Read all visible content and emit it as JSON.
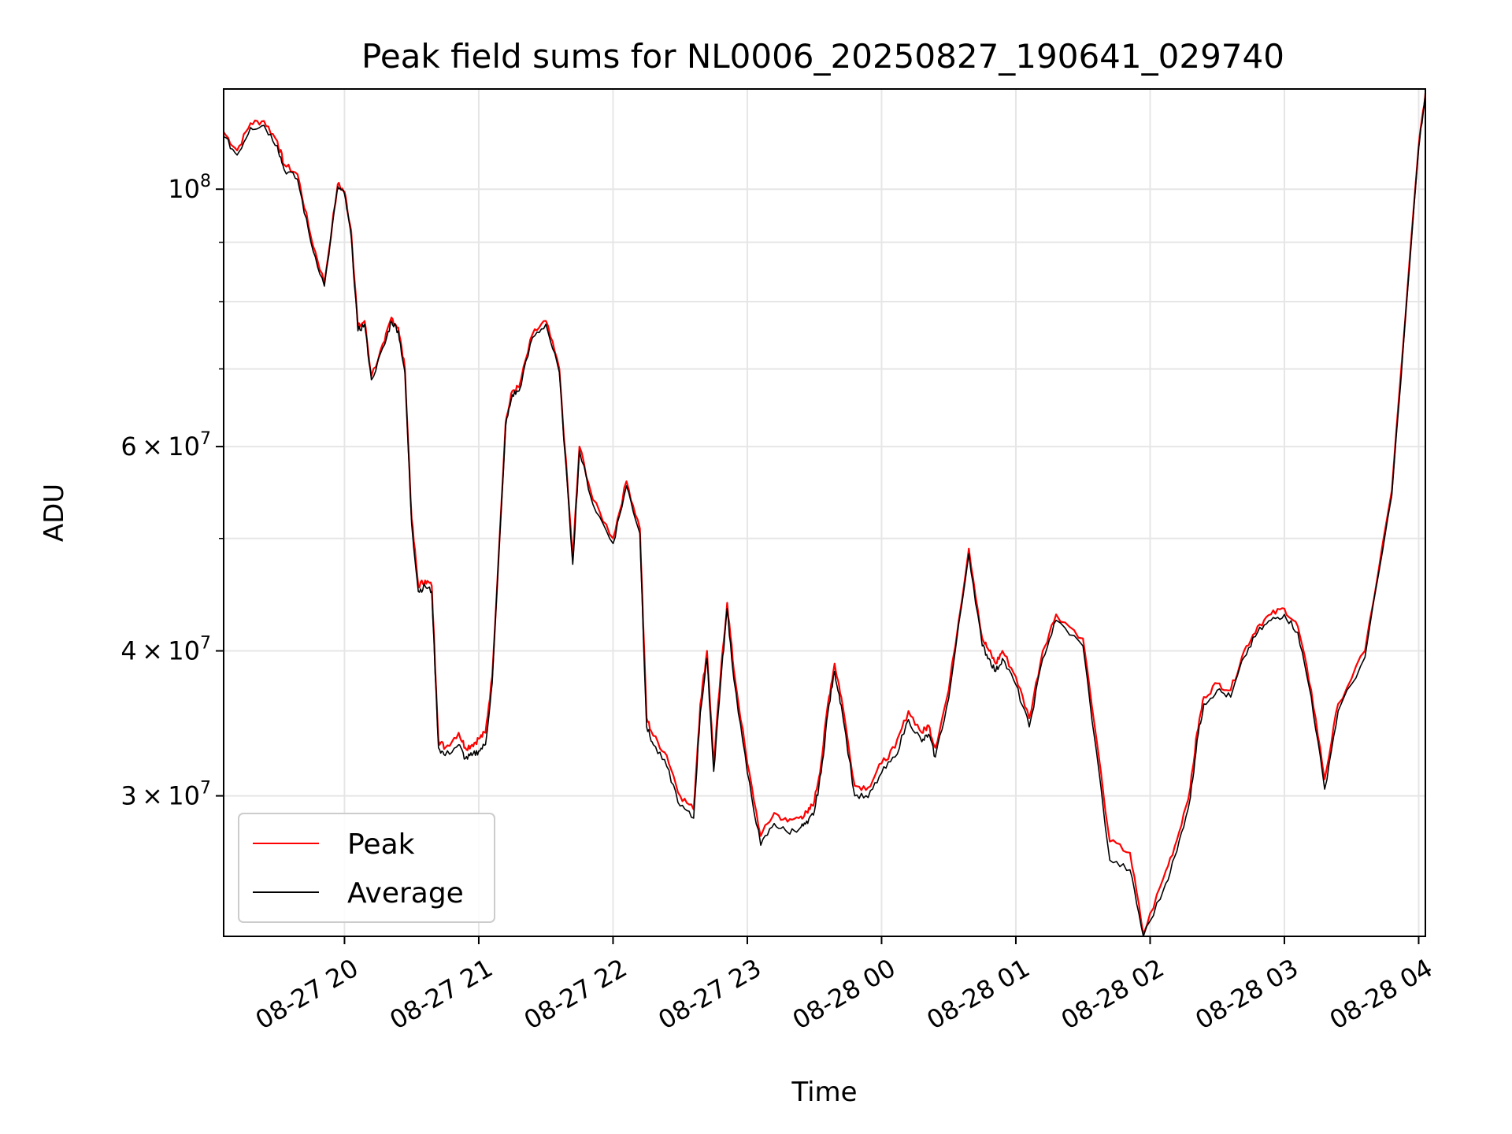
{
  "chart_data": {
    "type": "line",
    "title": "Peak field sums for NL0006_20250827_190641_029740",
    "xlabel": "Time",
    "ylabel": "ADU",
    "y_scale": "log",
    "grid": true,
    "legend_placement": "lower-left",
    "xlim": [
      "2025-08-27 19:06",
      "2025-08-28 04:03"
    ],
    "ylim": [
      22700000,
      122000000
    ],
    "x_tick_labels": [
      "08-27 20",
      "08-27 21",
      "08-27 22",
      "08-27 23",
      "08-28 00",
      "08-28 01",
      "08-28 02",
      "08-28 03",
      "08-28 04"
    ],
    "y_tick_labels": [
      {
        "value": 100000000,
        "mantissa": "",
        "exponent": "8"
      },
      {
        "value": 60000000,
        "mantissa": "6",
        "exponent": "7"
      },
      {
        "value": 40000000,
        "mantissa": "4",
        "exponent": "7"
      },
      {
        "value": 30000000,
        "mantissa": "3",
        "exponent": "7"
      }
    ],
    "x_time_hours": [
      0.0,
      0.1,
      0.2,
      0.3,
      0.4,
      0.45,
      0.55,
      0.65,
      0.75,
      0.85,
      0.9,
      0.95,
      1.0,
      1.05,
      1.1,
      1.2,
      1.25,
      1.3,
      1.35,
      1.4,
      1.45,
      1.5,
      1.55,
      1.6,
      1.65,
      1.75,
      1.8,
      1.85,
      1.9,
      1.95,
      2.0,
      2.1,
      2.15,
      2.2,
      2.3,
      2.4,
      2.5,
      2.6,
      2.65,
      2.75,
      2.9,
      3.0,
      3.1,
      3.15,
      3.2,
      3.3,
      3.4,
      3.5,
      3.55,
      3.6,
      3.65,
      3.7,
      3.75,
      3.8,
      3.9,
      4.0,
      4.1,
      4.2,
      4.3,
      4.35,
      4.4,
      4.45,
      4.5,
      4.55,
      4.6,
      4.7,
      4.8,
      4.9,
      5.0,
      5.1,
      5.2,
      5.25,
      5.3,
      5.4,
      5.55,
      5.65,
      5.7,
      5.75,
      5.8,
      5.9,
      6.0,
      6.1,
      6.2,
      6.4,
      6.6,
      6.75,
      6.85,
      7.0,
      7.1,
      7.2,
      7.25,
      7.3,
      7.4,
      7.5,
      7.6,
      7.7,
      7.8,
      7.9,
      8.0,
      8.1,
      8.2,
      8.3,
      8.5,
      8.7,
      8.9,
      8.95
    ],
    "series": [
      {
        "name": "Peak",
        "color": "#ff0000",
        "values": [
          112000000,
          108000000,
          114000000,
          114500000,
          110000000,
          105000000,
          103000000,
          91000000,
          83000000,
          101000000,
          99500000,
          92000000,
          76000000,
          77000000,
          69000000,
          74000000,
          77500000,
          76000000,
          70000000,
          52000000,
          45500000,
          46000000,
          45500000,
          33500000,
          33000000,
          34000000,
          33000000,
          33200000,
          33600000,
          34000000,
          38000000,
          63000000,
          67000000,
          67500000,
          75000000,
          77000000,
          70000000,
          48000000,
          60000000,
          54000000,
          50000000,
          56000000,
          51000000,
          35000000,
          33800000,
          32500000,
          30000000,
          29200000,
          36000000,
          40000000,
          32000000,
          38000000,
          44000000,
          38500000,
          32000000,
          27700000,
          29000000,
          28500000,
          28800000,
          29000000,
          29700000,
          32000000,
          36000000,
          39000000,
          36500000,
          30600000,
          30500000,
          32000000,
          33000000,
          35500000,
          34000000,
          34500000,
          33000000,
          37000000,
          49000000,
          41000000,
          40000000,
          39000000,
          40000000,
          38000000,
          35000000,
          40000000,
          43000000,
          41000000,
          27400000,
          26800000,
          22800000,
          25500000,
          27500000,
          30500000,
          34000000,
          36500000,
          37500000,
          37000000,
          40000000,
          42000000,
          43000000,
          43500000,
          42000000,
          37000000,
          31000000,
          36000000,
          40000000,
          55000000,
          109000000,
          121000000
        ]
      },
      {
        "name": "Average",
        "color": "#000000",
        "values": [
          111000000,
          107000000,
          113000000,
          113500000,
          109000000,
          104000000,
          102000000,
          90000000,
          82500000,
          100500000,
          99000000,
          91000000,
          75500000,
          76500000,
          68500000,
          73500000,
          77000000,
          75500000,
          69500000,
          51500000,
          45000000,
          45500000,
          45000000,
          33000000,
          32500000,
          33200000,
          32300000,
          32500000,
          32800000,
          33200000,
          37500000,
          62500000,
          66500000,
          67000000,
          74500000,
          76500000,
          69500000,
          47500000,
          59500000,
          53500000,
          49500000,
          55500000,
          50500000,
          34400000,
          33200000,
          31800000,
          29400000,
          28700000,
          35400000,
          39400000,
          31500000,
          37400000,
          43500000,
          37800000,
          31400000,
          27200000,
          28400000,
          27900000,
          28200000,
          28400000,
          29100000,
          31400000,
          35400000,
          38400000,
          35900000,
          30000000,
          29900000,
          31400000,
          32400000,
          34900000,
          33400000,
          33900000,
          32400000,
          36400000,
          48500000,
          40400000,
          39400000,
          38400000,
          39400000,
          37400000,
          34400000,
          39400000,
          42500000,
          40400000,
          26400000,
          25900000,
          22700000,
          24900000,
          26900000,
          29900000,
          33500000,
          36000000,
          37000000,
          36500000,
          39500000,
          41500000,
          42500000,
          43000000,
          41500000,
          36500000,
          30400000,
          35500000,
          39500000,
          54500000,
          108500000,
          120500000
        ]
      }
    ]
  }
}
